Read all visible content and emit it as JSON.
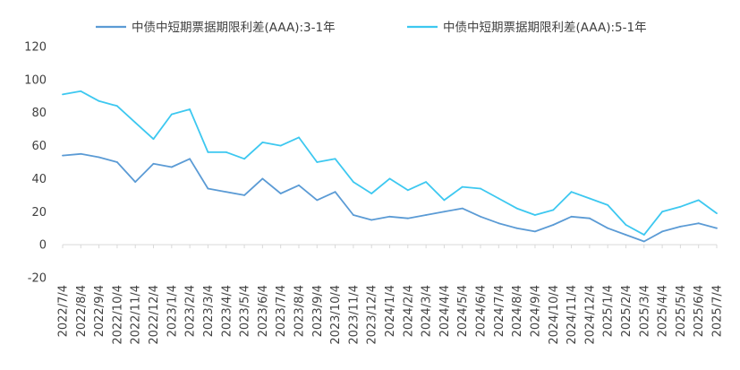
{
  "chart_data": {
    "type": "line",
    "title": "",
    "xlabel": "",
    "ylabel": "",
    "ylim": [
      -20,
      120
    ],
    "yticks": [
      -20,
      0,
      20,
      40,
      60,
      80,
      100,
      120
    ],
    "grid": false,
    "legend_position": "top",
    "x": [
      "2022/7/4",
      "2022/8/4",
      "2022/9/4",
      "2022/10/4",
      "2022/11/4",
      "2022/12/4",
      "2023/1/4",
      "2023/2/4",
      "2023/3/4",
      "2023/4/4",
      "2023/5/4",
      "2023/6/4",
      "2023/7/4",
      "2023/8/4",
      "2023/9/4",
      "2023/10/4",
      "2023/11/4",
      "2023/12/4",
      "2024/1/4",
      "2024/2/4",
      "2024/3/4",
      "2024/4/4",
      "2024/5/4",
      "2024/6/4",
      "2024/7/4",
      "2024/8/4",
      "2024/9/4",
      "2024/10/4",
      "2024/11/4",
      "2024/12/4",
      "2025/1/4",
      "2025/2/4",
      "2025/3/4",
      "2025/4/4",
      "2025/5/4",
      "2025/6/4",
      "2025/7/4"
    ],
    "series": [
      {
        "name": "中债中短期票据期限利差(AAA):3-1年",
        "color": "#5B9BD5",
        "values": [
          54,
          55,
          53,
          50,
          38,
          49,
          47,
          52,
          34,
          32,
          30,
          40,
          31,
          36,
          27,
          32,
          18,
          15,
          17,
          16,
          18,
          20,
          22,
          17,
          13,
          10,
          8,
          12,
          17,
          16,
          10,
          6,
          2,
          8,
          11,
          13,
          10
        ]
      },
      {
        "name": "中债中短期票据期限利差(AAA):5-1年",
        "color": "#3DC8F0",
        "values": [
          91,
          93,
          87,
          84,
          74,
          64,
          79,
          82,
          56,
          56,
          52,
          62,
          60,
          65,
          50,
          52,
          38,
          31,
          40,
          33,
          38,
          27,
          35,
          34,
          28,
          22,
          18,
          21,
          32,
          28,
          24,
          12,
          6,
          20,
          23,
          27,
          19
        ]
      }
    ]
  }
}
